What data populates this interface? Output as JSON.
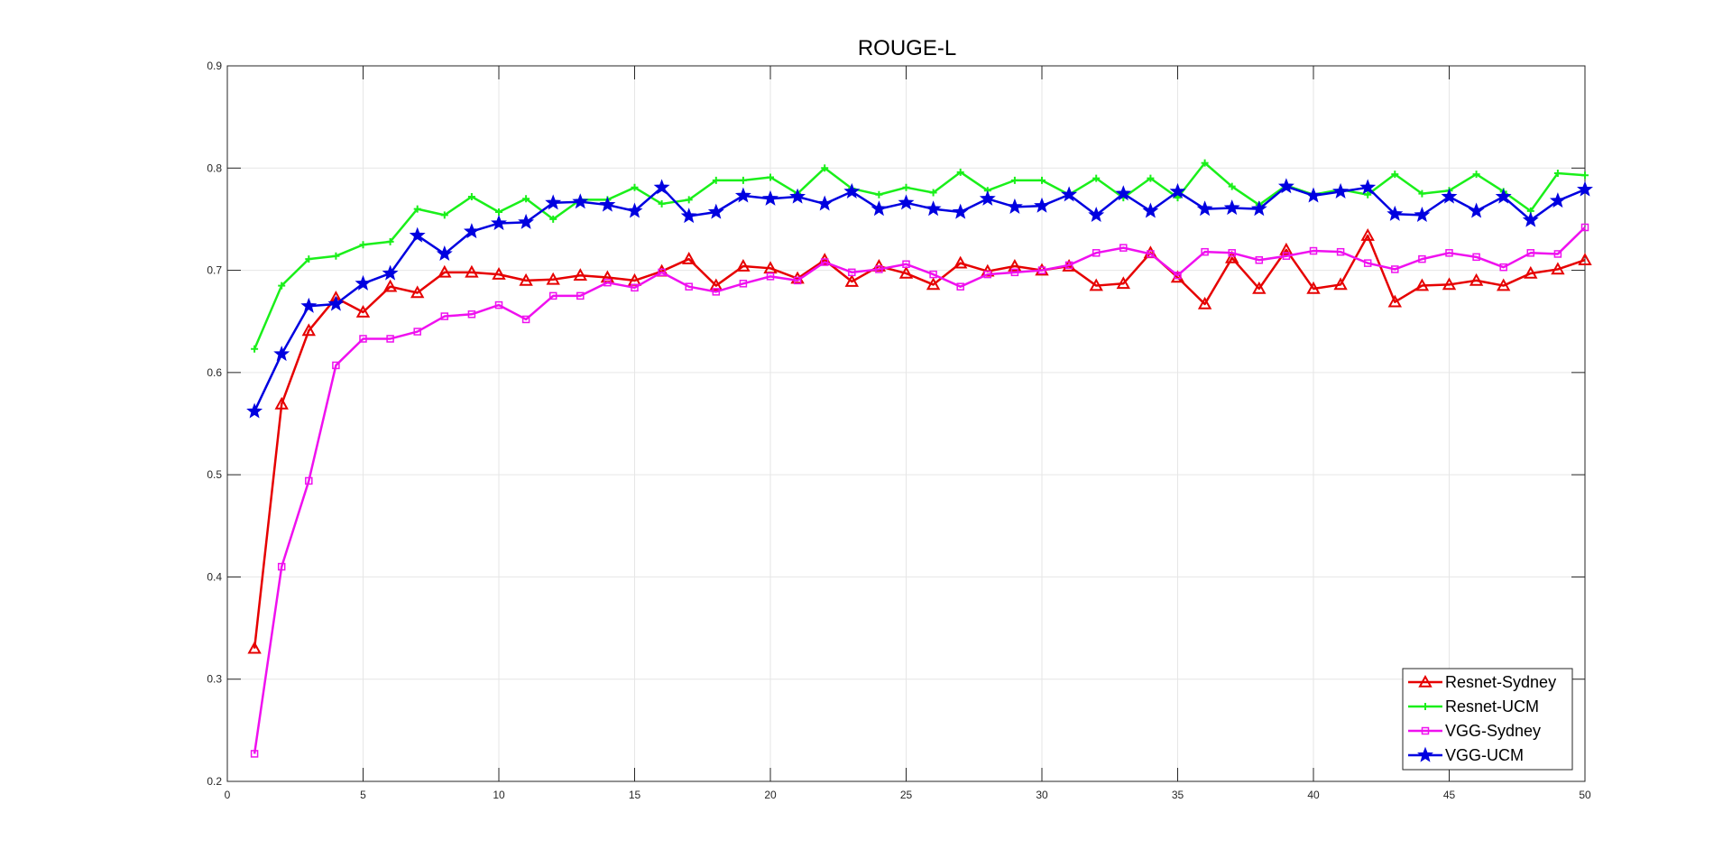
{
  "chart_data": {
    "type": "line",
    "title": "ROUGE-L",
    "xlabel": "",
    "ylabel": "",
    "xlim": [
      0,
      50
    ],
    "ylim": [
      0.2,
      0.9
    ],
    "xticks": [
      0,
      5,
      10,
      15,
      20,
      25,
      30,
      35,
      40,
      45,
      50
    ],
    "yticks": [
      0.2,
      0.3,
      0.4,
      0.5,
      0.6,
      0.7,
      0.8,
      0.9
    ],
    "grid": true,
    "legend_position": "bottom-right",
    "x": [
      1,
      2,
      3,
      4,
      5,
      6,
      7,
      8,
      9,
      10,
      11,
      12,
      13,
      14,
      15,
      16,
      17,
      18,
      19,
      20,
      21,
      22,
      23,
      24,
      25,
      26,
      27,
      28,
      29,
      30,
      31,
      32,
      33,
      34,
      35,
      36,
      37,
      38,
      39,
      40,
      41,
      42,
      43,
      44,
      45,
      46,
      47,
      48,
      49,
      50
    ],
    "series": [
      {
        "name": "Resnet-Sydney",
        "color": "#e60000",
        "marker": "triangle",
        "values": [
          0.33,
          0.569,
          0.641,
          0.673,
          0.659,
          0.684,
          0.678,
          0.698,
          0.698,
          0.696,
          0.69,
          0.691,
          0.695,
          0.693,
          0.69,
          0.699,
          0.711,
          0.685,
          0.704,
          0.702,
          0.692,
          0.71,
          0.689,
          0.704,
          0.697,
          0.686,
          0.707,
          0.699,
          0.704,
          0.7,
          0.704,
          0.685,
          0.687,
          0.717,
          0.693,
          0.667,
          0.712,
          0.682,
          0.72,
          0.682,
          0.686,
          0.734,
          0.669,
          0.685,
          0.686,
          0.69,
          0.685,
          0.697,
          0.701,
          0.71
        ]
      },
      {
        "name": "Resnet-UCM",
        "color": "#1aef1a",
        "marker": "plus",
        "values": [
          0.623,
          0.685,
          0.711,
          0.714,
          0.725,
          0.728,
          0.76,
          0.754,
          0.772,
          0.757,
          0.77,
          0.75,
          0.769,
          0.769,
          0.781,
          0.765,
          0.769,
          0.788,
          0.788,
          0.791,
          0.775,
          0.8,
          0.78,
          0.774,
          0.781,
          0.776,
          0.796,
          0.778,
          0.788,
          0.788,
          0.774,
          0.79,
          0.771,
          0.79,
          0.771,
          0.805,
          0.782,
          0.764,
          0.783,
          0.774,
          0.779,
          0.774,
          0.794,
          0.775,
          0.778,
          0.794,
          0.777,
          0.758,
          0.795,
          0.793
        ]
      },
      {
        "name": "VGG-Sydney",
        "color": "#ef10ef",
        "marker": "square",
        "values": [
          0.227,
          0.41,
          0.494,
          0.607,
          0.633,
          0.633,
          0.64,
          0.655,
          0.657,
          0.666,
          0.652,
          0.675,
          0.675,
          0.688,
          0.683,
          0.698,
          0.684,
          0.679,
          0.687,
          0.694,
          0.69,
          0.708,
          0.698,
          0.701,
          0.706,
          0.696,
          0.684,
          0.696,
          0.698,
          0.7,
          0.705,
          0.717,
          0.722,
          0.716,
          0.695,
          0.718,
          0.717,
          0.71,
          0.714,
          0.719,
          0.718,
          0.707,
          0.701,
          0.711,
          0.717,
          0.713,
          0.703,
          0.717,
          0.716,
          0.742
        ]
      },
      {
        "name": "VGG-UCM",
        "color": "#0000e0",
        "marker": "star",
        "values": [
          0.562,
          0.618,
          0.665,
          0.667,
          0.687,
          0.697,
          0.734,
          0.716,
          0.738,
          0.746,
          0.747,
          0.766,
          0.767,
          0.764,
          0.758,
          0.781,
          0.753,
          0.757,
          0.773,
          0.77,
          0.772,
          0.765,
          0.777,
          0.76,
          0.766,
          0.76,
          0.757,
          0.77,
          0.762,
          0.763,
          0.774,
          0.754,
          0.775,
          0.758,
          0.777,
          0.76,
          0.761,
          0.76,
          0.782,
          0.773,
          0.777,
          0.781,
          0.755,
          0.754,
          0.772,
          0.758,
          0.772,
          0.749,
          0.768,
          0.779
        ]
      }
    ]
  }
}
